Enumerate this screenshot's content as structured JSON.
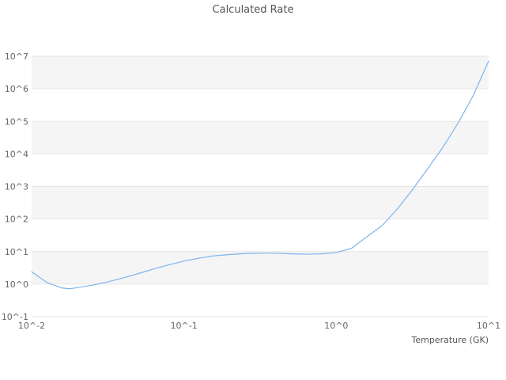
{
  "chart_data": {
    "type": "line",
    "title": "Calculated Rate",
    "xlabel": "Temperature (GK)",
    "ylabel": "",
    "x_scale": "log",
    "y_scale": "log",
    "xlim": [
      0.01,
      10
    ],
    "ylim": [
      0.1,
      10000000
    ],
    "x_ticks": [
      "10^-2",
      "10^-1",
      "10^0",
      "10^1"
    ],
    "x_tick_values": [
      0.01,
      0.1,
      1,
      10
    ],
    "y_ticks": [
      "10^-1",
      "10^0",
      "10^1",
      "10^2",
      "10^3",
      "10^4",
      "10^5",
      "10^6",
      "10^7"
    ],
    "y_tick_values": [
      0.1,
      1,
      10,
      100,
      1000,
      10000,
      100000,
      1000000,
      10000000
    ],
    "grid": true,
    "legend": "none",
    "series": [
      {
        "name": "calculated-rate",
        "x": [
          0.01,
          0.0126,
          0.0158,
          0.0178,
          0.02,
          0.0251,
          0.0316,
          0.0398,
          0.0501,
          0.0631,
          0.0794,
          0.1,
          0.126,
          0.158,
          0.2,
          0.251,
          0.316,
          0.398,
          0.501,
          0.631,
          0.794,
          1.0,
          1.26,
          1.58,
          2.0,
          2.51,
          3.16,
          3.98,
          5.01,
          6.31,
          7.94,
          10.0
        ],
        "y": [
          2.4,
          1.12,
          0.76,
          0.72,
          0.78,
          0.93,
          1.17,
          1.55,
          2.1,
          2.9,
          3.9,
          5.1,
          6.3,
          7.4,
          8.1,
          8.7,
          8.9,
          8.9,
          8.5,
          8.3,
          8.5,
          9.3,
          12.6,
          28,
          63,
          200,
          790,
          3500,
          16000,
          89000,
          630000,
          7100000
        ]
      }
    ],
    "colors": {
      "line": "#7cb5ec",
      "band": "#f5f5f5",
      "band_alt": "#ffffff",
      "grid": "#e6e6e6",
      "title": "#555555",
      "tick": "#666666",
      "background": "#ffffff"
    }
  }
}
